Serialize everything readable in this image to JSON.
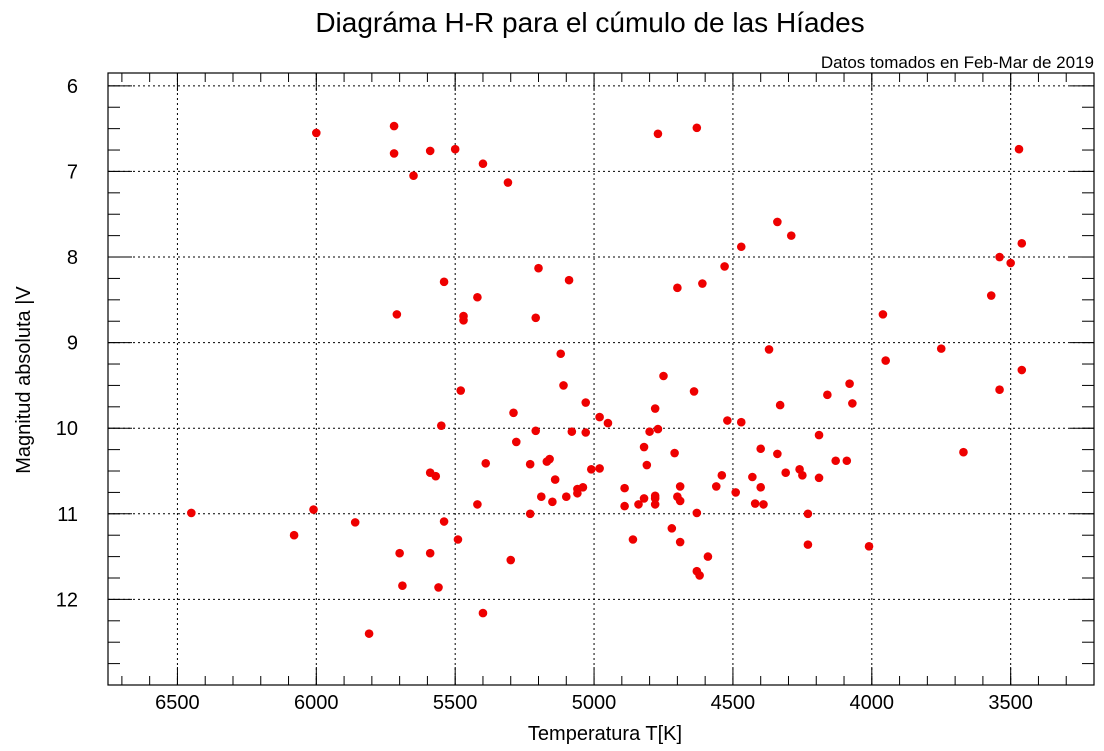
{
  "chart_data": {
    "type": "scatter",
    "title": "Diagráma H-R para el cúmulo de las Híades",
    "subtitle": "Datos tomados en Feb-Mar de 2019",
    "xlabel": "Temperatura T[K]",
    "ylabel": "Magnitud absoluta  |V",
    "xlim": [
      6750,
      3200
    ],
    "ylim": [
      13,
      5.85
    ],
    "xticks": [
      6500,
      6000,
      5500,
      5000,
      4500,
      4000,
      3500
    ],
    "yticks": [
      6,
      7,
      8,
      9,
      10,
      11,
      12
    ],
    "xminor": 100,
    "yminor": 0.25,
    "grid": true,
    "color": "#ee0000",
    "series": [
      {
        "color": "#ee0000",
        "x": [
          6450,
          6080,
          6000,
          6010,
          5860,
          5720,
          5720,
          5710,
          5700,
          5690,
          5810,
          5650,
          5590,
          5590,
          5590,
          5570,
          5560,
          5540,
          5550,
          5540,
          5500,
          5490,
          5480,
          5470,
          5470,
          5420,
          5420,
          5400,
          5390,
          5400,
          5310,
          5300,
          5290,
          5280,
          5230,
          5230,
          5210,
          5210,
          5200,
          5190,
          5170,
          5160,
          5150,
          5140,
          5120,
          5110,
          5100,
          5090,
          5080,
          5060,
          5060,
          5040,
          5030,
          5030,
          5010,
          4980,
          4980,
          4950,
          4890,
          4890,
          4860,
          4840,
          4820,
          4820,
          4810,
          4800,
          4780,
          4780,
          4780,
          4780,
          4770,
          4770,
          4750,
          4720,
          4710,
          4700,
          4700,
          4690,
          4690,
          4690,
          4640,
          4630,
          4630,
          4630,
          4620,
          4610,
          4590,
          4560,
          4540,
          4530,
          4520,
          4490,
          4470,
          4470,
          4430,
          4420,
          4400,
          4400,
          4390,
          4370,
          4340,
          4340,
          4330,
          4310,
          4290,
          4260,
          4250,
          4230,
          4230,
          4190,
          4190,
          4160,
          4130,
          4090,
          4080,
          4070,
          3960,
          3950,
          4010,
          3750,
          3670,
          3570,
          3540,
          3540,
          3500,
          3470,
          3460,
          3460
        ],
        "values": [
          10.99,
          11.25,
          6.55,
          10.95,
          11.1,
          6.47,
          6.79,
          8.67,
          11.46,
          11.84,
          12.4,
          7.05,
          6.76,
          10.52,
          11.46,
          10.56,
          11.86,
          8.29,
          9.97,
          11.09,
          6.74,
          11.3,
          9.56,
          8.69,
          8.74,
          8.47,
          10.89,
          6.91,
          10.41,
          12.16,
          7.13,
          11.54,
          9.82,
          10.16,
          10.42,
          11.0,
          8.71,
          10.03,
          8.13,
          10.8,
          10.39,
          10.36,
          10.86,
          10.6,
          9.13,
          9.5,
          10.8,
          8.27,
          10.04,
          10.76,
          10.71,
          10.69,
          9.7,
          10.05,
          10.48,
          10.47,
          9.87,
          9.94,
          10.7,
          10.91,
          11.3,
          10.89,
          10.22,
          10.82,
          10.43,
          10.04,
          10.89,
          10.82,
          10.79,
          9.77,
          6.56,
          10.01,
          9.39,
          11.17,
          10.29,
          8.36,
          10.8,
          11.33,
          10.85,
          10.68,
          9.57,
          11.67,
          10.99,
          6.49,
          11.72,
          8.31,
          11.5,
          10.68,
          10.55,
          8.11,
          9.91,
          10.75,
          9.93,
          7.88,
          10.57,
          10.88,
          10.69,
          10.24,
          10.89,
          9.08,
          7.59,
          10.3,
          9.73,
          10.52,
          7.75,
          10.48,
          10.55,
          11.0,
          11.36,
          10.58,
          10.08,
          9.61,
          10.38,
          10.38,
          9.48,
          9.71,
          8.67,
          9.21,
          11.38,
          9.07,
          10.28,
          8.45,
          8.0,
          9.55,
          8.07,
          6.74,
          7.84,
          9.32
        ]
      }
    ]
  }
}
